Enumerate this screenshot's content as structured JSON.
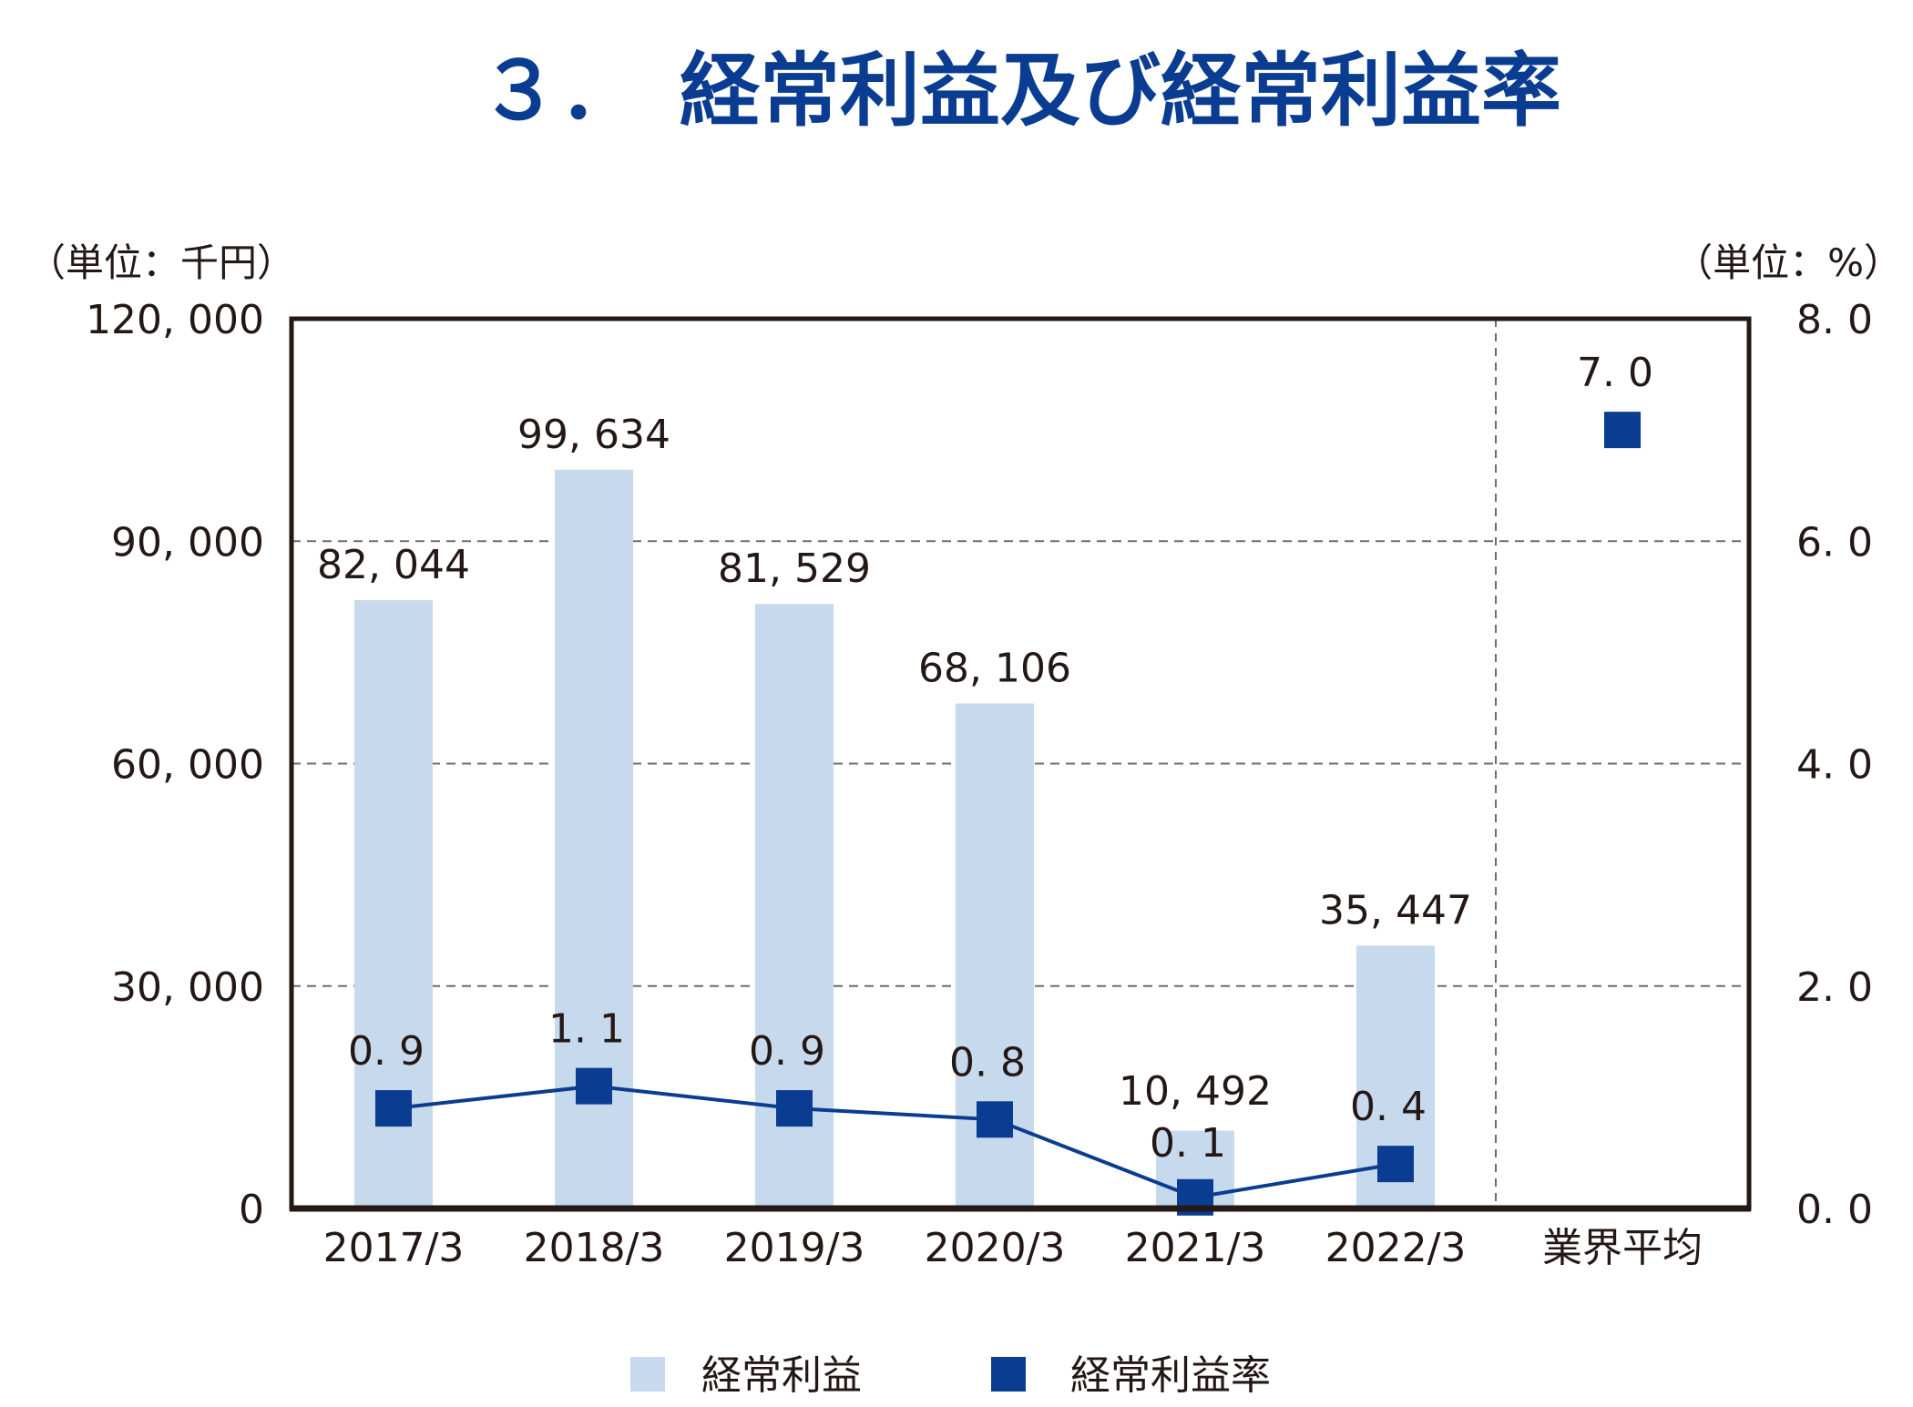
{
  "chart_data": {
    "type": "bar",
    "title": "３．　経常利益及び経常利益率",
    "left_unit_label": "（単位：千円）",
    "right_unit_label": "（単位：%）",
    "categories": [
      "2017/3",
      "2018/3",
      "2019/3",
      "2020/3",
      "2021/3",
      "2022/3",
      "業界平均"
    ],
    "series": [
      {
        "name": "経常利益",
        "type": "bar",
        "axis": "left",
        "color": "#c7d9ec",
        "values": [
          82044,
          99634,
          81529,
          68106,
          10492,
          35447,
          null
        ],
        "labels": [
          "82, 044",
          "99, 634",
          "81, 529",
          "68, 106",
          "10, 492",
          "35, 447",
          ""
        ]
      },
      {
        "name": "経常利益率",
        "type": "line",
        "axis": "right",
        "color": "#0a3d91",
        "values": [
          0.9,
          1.1,
          0.9,
          0.8,
          0.1,
          0.4,
          7.0
        ],
        "labels": [
          "0. 9",
          "1. 1",
          "0. 9",
          "0. 8",
          "0. 1",
          "0. 4",
          "7. 0"
        ],
        "connected_count": 6
      }
    ],
    "left_axis": {
      "min": 0,
      "max": 120000,
      "ticks": [
        0,
        30000,
        60000,
        90000,
        120000
      ],
      "tick_labels": [
        "0",
        "30, 000",
        "60, 000",
        "90, 000",
        "120, 000"
      ]
    },
    "right_axis": {
      "min": 0,
      "max": 8,
      "ticks": [
        0,
        2,
        4,
        6,
        8
      ],
      "tick_labels": [
        "0. 0",
        "2. 0",
        "4. 0",
        "6. 0",
        "8. 0"
      ]
    },
    "grid": "horizontal-dashed",
    "legend_position": "bottom-center"
  }
}
